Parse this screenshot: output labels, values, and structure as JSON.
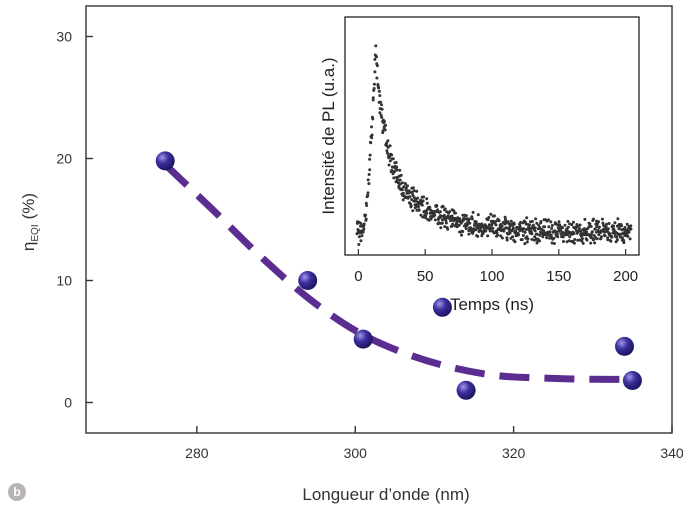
{
  "panel_label": "b",
  "colors": {
    "marker": "#3b2f9e",
    "fit": "#5c2d91",
    "panel_badge": "#b9b3b8",
    "inset_points": "#333333"
  },
  "chart_data": [
    {
      "type": "scatter",
      "title": "",
      "xlabel": "Longueur d’onde (nm)",
      "ylabel_main": "η",
      "ylabel_sub": "EQI",
      "ylabel_unit": "(%)",
      "xlim": [
        266,
        340
      ],
      "ylim": [
        -2.5,
        32.5
      ],
      "xticks": [
        280,
        300,
        320,
        340
      ],
      "yticks": [
        0,
        10,
        20,
        30
      ],
      "grid": false,
      "series": [
        {
          "kind": "points",
          "x": [
            276,
            294,
            301,
            311,
            314,
            334,
            335
          ],
          "y": [
            19.8,
            10.0,
            5.2,
            7.8,
            1.0,
            4.6,
            1.8
          ]
        },
        {
          "kind": "dashed-fit",
          "x": [
            276,
            282,
            288,
            294,
            300,
            306,
            312,
            318,
            324,
            330,
            336
          ],
          "y": [
            19.5,
            15.8,
            12.0,
            8.6,
            5.9,
            4.1,
            2.9,
            2.2,
            2.0,
            1.9,
            1.9
          ]
        }
      ]
    },
    {
      "type": "scatter",
      "title": "",
      "xlabel": "Temps (ns)",
      "ylabel": "Intensité de PL (u.a.)",
      "xlim": [
        -10,
        210
      ],
      "ylim": [
        0,
        1.05
      ],
      "xticks": [
        0,
        50,
        100,
        150,
        200
      ],
      "grid": false,
      "model": {
        "rise_start": 3,
        "rise_end": 13,
        "baseline": 0.1,
        "peak": 0.9,
        "fast_amp": 0.43,
        "fast_tau": 6,
        "slow_amp": 0.37,
        "slow_tau": 30,
        "noise": 0.06,
        "point_spacing": 0.25
      }
    }
  ]
}
